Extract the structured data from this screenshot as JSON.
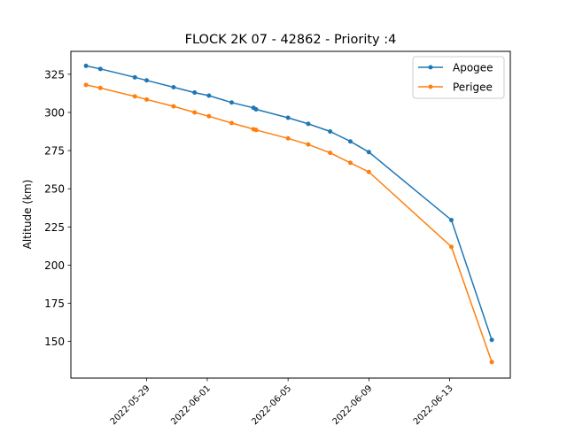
{
  "chart_data": {
    "type": "line",
    "title": "FLOCK 2K 07 - 42862 - Priority :4",
    "xlabel": "",
    "ylabel": "Altitude (km)",
    "x_ticks": [
      "2022-05-29",
      "2022-06-01",
      "2022-06-05",
      "2022-06-09",
      "2022-06-13"
    ],
    "y_ticks": [
      150,
      175,
      200,
      225,
      250,
      275,
      300,
      325
    ],
    "xlim": [
      "2022-05-25T06:00",
      "2022-06-16T00:00"
    ],
    "ylim": [
      126,
      340
    ],
    "grid": false,
    "legend_position": "top-right",
    "series": [
      {
        "name": "Apogee",
        "color": "#1f77b4",
        "x": [
          "2022-05-26T00:00",
          "2022-05-26T17:00",
          "2022-05-28T10:00",
          "2022-05-29T00:00",
          "2022-05-30T08:00",
          "2022-05-31T09:00",
          "2022-06-01T02:00",
          "2022-06-02T05:00",
          "2022-06-03T07:00",
          "2022-06-03T10:00",
          "2022-06-05T00:00",
          "2022-06-06T00:00",
          "2022-06-07T02:00",
          "2022-06-08T02:00",
          "2022-06-09T00:00",
          "2022-06-13T02:00",
          "2022-06-15T02:00"
        ],
        "y": [
          330.5,
          328.5,
          323,
          321,
          316.5,
          313,
          311,
          306.5,
          303,
          302,
          296.5,
          292.5,
          287.5,
          281,
          274,
          229.5,
          151
        ]
      },
      {
        "name": "Perigee",
        "color": "#ff7f0e",
        "x": [
          "2022-05-26T00:00",
          "2022-05-26T17:00",
          "2022-05-28T10:00",
          "2022-05-29T00:00",
          "2022-05-30T08:00",
          "2022-05-31T09:00",
          "2022-06-01T02:00",
          "2022-06-02T05:00",
          "2022-06-03T07:00",
          "2022-06-03T10:00",
          "2022-06-05T00:00",
          "2022-06-06T00:00",
          "2022-06-07T02:00",
          "2022-06-08T02:00",
          "2022-06-09T00:00",
          "2022-06-13T02:00",
          "2022-06-15T02:00"
        ],
        "y": [
          318,
          316,
          310.5,
          308.5,
          304,
          300,
          297.5,
          293,
          289,
          288.5,
          283,
          279,
          273.5,
          267,
          261,
          212,
          136.5
        ]
      }
    ]
  }
}
